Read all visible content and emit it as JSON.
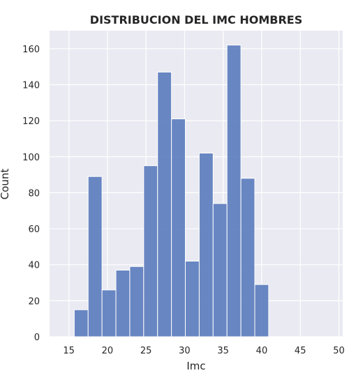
{
  "chart_data": {
    "type": "bar",
    "title": "DISTRIBUCION DEL IMC HOMBRES",
    "xlabel": "Imc",
    "ylabel": "Count",
    "xlim": [
      12.5,
      50.5
    ],
    "ylim": [
      0,
      170
    ],
    "x_ticks": [
      15,
      20,
      25,
      30,
      35,
      40,
      45,
      50
    ],
    "y_ticks": [
      0,
      20,
      40,
      60,
      80,
      100,
      120,
      140,
      160
    ],
    "grid": true,
    "bar_color": "#5a7bbd",
    "background_color": "#eaeaf2",
    "bins": [
      {
        "start": 13.9,
        "end": 15.7,
        "count": 0
      },
      {
        "start": 15.7,
        "end": 17.5,
        "count": 15
      },
      {
        "start": 17.5,
        "end": 19.3,
        "count": 89
      },
      {
        "start": 19.3,
        "end": 21.1,
        "count": 26
      },
      {
        "start": 21.1,
        "end": 22.9,
        "count": 37
      },
      {
        "start": 22.9,
        "end": 24.7,
        "count": 39
      },
      {
        "start": 24.7,
        "end": 26.5,
        "count": 95
      },
      {
        "start": 26.5,
        "end": 28.3,
        "count": 147
      },
      {
        "start": 28.3,
        "end": 30.1,
        "count": 121
      },
      {
        "start": 30.1,
        "end": 31.9,
        "count": 42
      },
      {
        "start": 31.9,
        "end": 33.7,
        "count": 102
      },
      {
        "start": 33.7,
        "end": 35.5,
        "count": 74
      },
      {
        "start": 35.5,
        "end": 37.3,
        "count": 162
      },
      {
        "start": 37.3,
        "end": 39.1,
        "count": 88
      },
      {
        "start": 39.1,
        "end": 40.9,
        "count": 29
      },
      {
        "start": 40.9,
        "end": 42.7,
        "count": 0
      },
      {
        "start": 42.7,
        "end": 44.5,
        "count": 0
      },
      {
        "start": 44.5,
        "end": 46.3,
        "count": 0
      },
      {
        "start": 46.3,
        "end": 48.1,
        "count": 0
      },
      {
        "start": 48.1,
        "end": 49.9,
        "count": 0
      }
    ]
  }
}
